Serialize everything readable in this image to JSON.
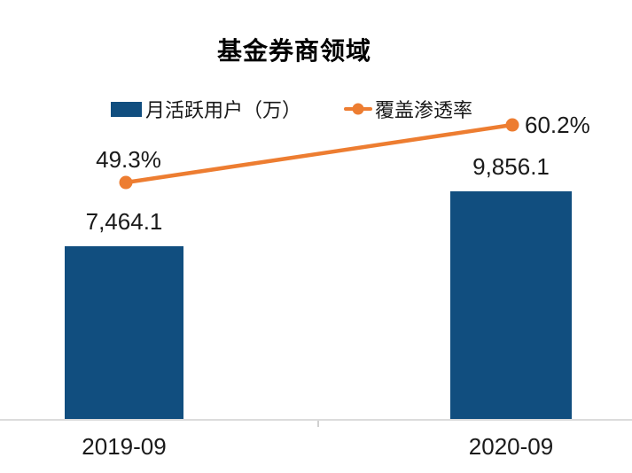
{
  "chart_data": {
    "type": "bar+line combo",
    "title": "基金券商领域",
    "categories": [
      "2019-09",
      "2020-09"
    ],
    "series": [
      {
        "name": "月活跃用户（万）",
        "type": "bar",
        "values": [
          7464.1,
          9856.1
        ],
        "labels": [
          "7,464.1",
          "9,856.1"
        ],
        "color": "#114E7F"
      },
      {
        "name": "覆盖渗透率",
        "type": "line",
        "values": [
          49.3,
          60.2
        ],
        "labels": [
          "49.3%",
          "60.2%"
        ],
        "color": "#ED7D31"
      }
    ],
    "legend_position": "top",
    "grid": false,
    "value_axes_hidden": true,
    "bar_baseline": 0
  },
  "colors": {
    "bar": "#114E7F",
    "line": "#ED7D31",
    "axis": "#dcdcdc",
    "text": "#1a1a1a"
  }
}
